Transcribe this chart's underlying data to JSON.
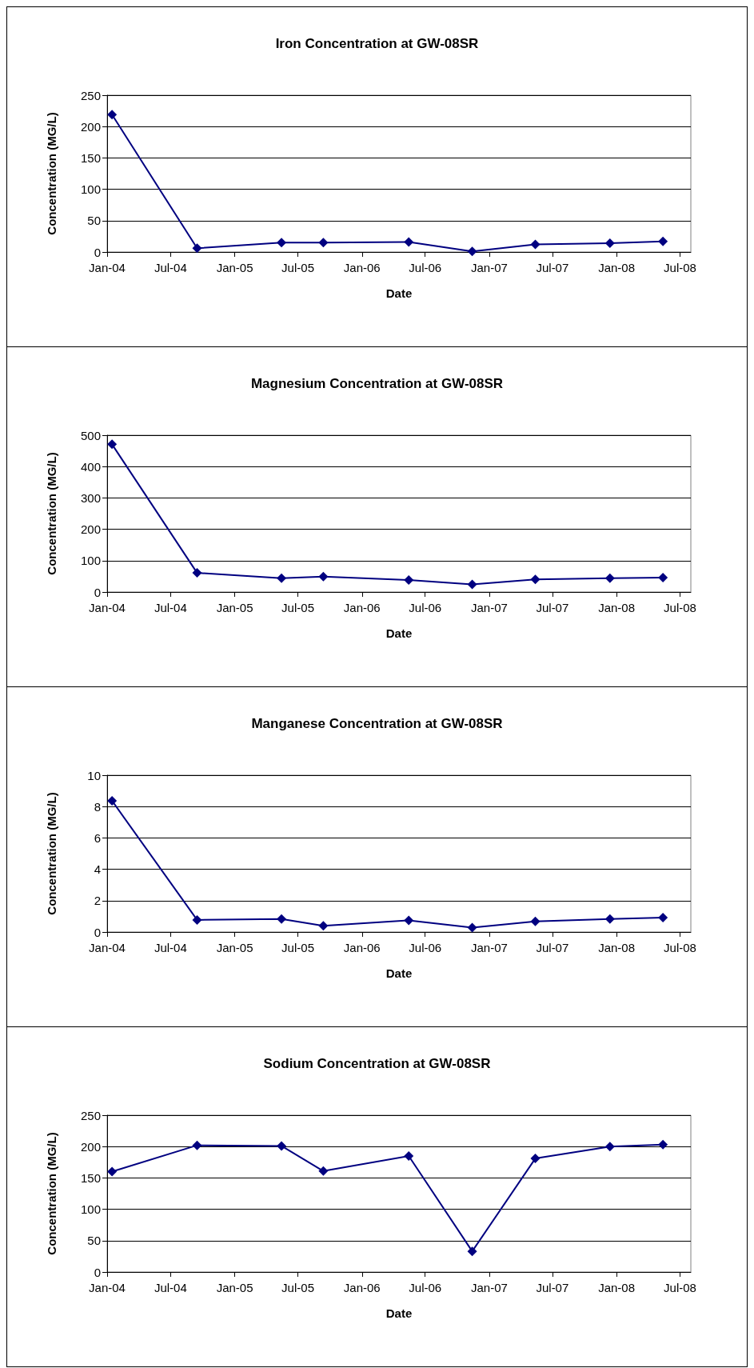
{
  "chart_data": [
    {
      "type": "line",
      "title": "Iron Concentration at GW-08SR",
      "xlabel": "Date",
      "ylabel": "Concentration (MG/L)",
      "x": [
        "2004-01-15",
        "2004-09-15",
        "2005-05-15",
        "2005-09-12",
        "2006-05-15",
        "2006-11-13",
        "2007-05-13",
        "2007-12-13",
        "2008-05-13"
      ],
      "series": [
        {
          "color": "#000080",
          "values": [
            219,
            6,
            15,
            15,
            16,
            1,
            12,
            14,
            17
          ]
        }
      ],
      "xlim": [
        "2004-01-01",
        "2008-08-01"
      ],
      "xticks": [
        {
          "value": "2004-01",
          "label": "Jan-04"
        },
        {
          "value": "2004-07",
          "label": "Jul-04"
        },
        {
          "value": "2005-01",
          "label": "Jan-05"
        },
        {
          "value": "2005-07",
          "label": "Jul-05"
        },
        {
          "value": "2006-01",
          "label": "Jan-06"
        },
        {
          "value": "2006-07",
          "label": "Jul-06"
        },
        {
          "value": "2007-01",
          "label": "Jan-07"
        },
        {
          "value": "2007-07",
          "label": "Jul-07"
        },
        {
          "value": "2008-01",
          "label": "Jan-08"
        },
        {
          "value": "2008-07",
          "label": "Jul-08"
        }
      ],
      "ylim": [
        0,
        250
      ],
      "yticks": [
        0,
        50,
        100,
        150,
        200,
        250
      ],
      "grid": "y",
      "marker": "diamond",
      "line_style": "solid"
    },
    {
      "type": "line",
      "title": "Magnesium Concentration at GW-08SR",
      "xlabel": "Date",
      "ylabel": "Concentration (MG/L)",
      "x": [
        "2004-01-15",
        "2004-09-15",
        "2005-05-15",
        "2005-09-12",
        "2006-05-15",
        "2006-11-13",
        "2007-05-13",
        "2007-12-13",
        "2008-05-13"
      ],
      "series": [
        {
          "color": "#000080",
          "values": [
            471,
            61,
            44,
            49,
            38,
            24,
            40,
            44,
            46
          ]
        }
      ],
      "xlim": [
        "2004-01-01",
        "2008-08-01"
      ],
      "xticks": [
        {
          "value": "2004-01",
          "label": "Jan-04"
        },
        {
          "value": "2004-07",
          "label": "Jul-04"
        },
        {
          "value": "2005-01",
          "label": "Jan-05"
        },
        {
          "value": "2005-07",
          "label": "Jul-05"
        },
        {
          "value": "2006-01",
          "label": "Jan-06"
        },
        {
          "value": "2006-07",
          "label": "Jul-06"
        },
        {
          "value": "2007-01",
          "label": "Jan-07"
        },
        {
          "value": "2007-07",
          "label": "Jul-07"
        },
        {
          "value": "2008-01",
          "label": "Jan-08"
        },
        {
          "value": "2008-07",
          "label": "Jul-08"
        }
      ],
      "ylim": [
        0,
        500
      ],
      "yticks": [
        0,
        100,
        200,
        300,
        400,
        500
      ],
      "grid": "y",
      "marker": "diamond",
      "line_style": "solid"
    },
    {
      "type": "line",
      "title": "Manganese Concentration at GW-08SR",
      "xlabel": "Date",
      "ylabel": "Concentration (MG/L)",
      "x": [
        "2004-01-15",
        "2004-09-15",
        "2005-05-15",
        "2005-09-12",
        "2006-05-15",
        "2006-11-13",
        "2007-05-13",
        "2007-12-13",
        "2008-05-13"
      ],
      "series": [
        {
          "color": "#000080",
          "values": [
            8.37,
            0.77,
            0.83,
            0.4,
            0.74,
            0.28,
            0.68,
            0.83,
            0.92
          ]
        }
      ],
      "xlim": [
        "2004-01-01",
        "2008-08-01"
      ],
      "xticks": [
        {
          "value": "2004-01",
          "label": "Jan-04"
        },
        {
          "value": "2004-07",
          "label": "Jul-04"
        },
        {
          "value": "2005-01",
          "label": "Jan-05"
        },
        {
          "value": "2005-07",
          "label": "Jul-05"
        },
        {
          "value": "2006-01",
          "label": "Jan-06"
        },
        {
          "value": "2006-07",
          "label": "Jul-06"
        },
        {
          "value": "2007-01",
          "label": "Jan-07"
        },
        {
          "value": "2007-07",
          "label": "Jul-07"
        },
        {
          "value": "2008-01",
          "label": "Jan-08"
        },
        {
          "value": "2008-07",
          "label": "Jul-08"
        }
      ],
      "ylim": [
        0,
        10
      ],
      "yticks": [
        0,
        2,
        4,
        6,
        8,
        10
      ],
      "grid": "y",
      "marker": "diamond",
      "line_style": "solid"
    },
    {
      "type": "line",
      "title": "Sodium Concentration at GW-08SR",
      "xlabel": "Date",
      "ylabel": "Concentration (MG/L)",
      "x": [
        "2004-01-15",
        "2004-09-15",
        "2005-05-15",
        "2005-09-12",
        "2006-05-15",
        "2006-11-13",
        "2007-05-13",
        "2007-12-13",
        "2008-05-13"
      ],
      "series": [
        {
          "color": "#000080",
          "values": [
            160,
            202,
            201,
            161,
            185,
            33,
            181,
            200,
            203
          ]
        }
      ],
      "xlim": [
        "2004-01-01",
        "2008-08-01"
      ],
      "xticks": [
        {
          "value": "2004-01",
          "label": "Jan-04"
        },
        {
          "value": "2004-07",
          "label": "Jul-04"
        },
        {
          "value": "2005-01",
          "label": "Jan-05"
        },
        {
          "value": "2005-07",
          "label": "Jul-05"
        },
        {
          "value": "2006-01",
          "label": "Jan-06"
        },
        {
          "value": "2006-07",
          "label": "Jul-06"
        },
        {
          "value": "2007-01",
          "label": "Jan-07"
        },
        {
          "value": "2007-07",
          "label": "Jul-07"
        },
        {
          "value": "2008-01",
          "label": "Jan-08"
        },
        {
          "value": "2008-07",
          "label": "Jul-08"
        }
      ],
      "ylim": [
        0,
        250
      ],
      "yticks": [
        0,
        50,
        100,
        150,
        200,
        250
      ],
      "grid": "y",
      "marker": "diamond",
      "line_style": "solid"
    }
  ]
}
